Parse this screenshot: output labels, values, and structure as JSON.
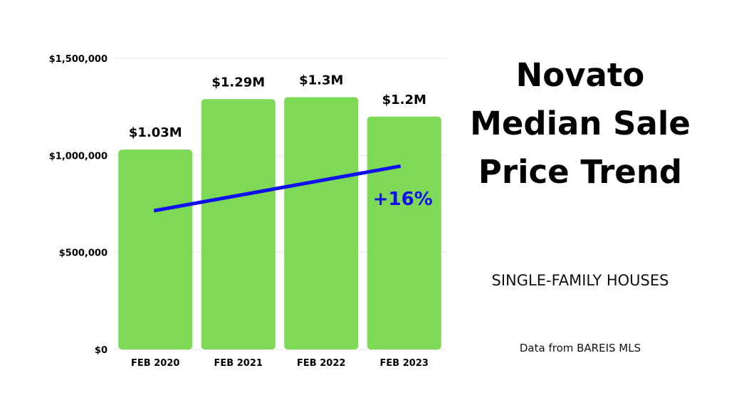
{
  "title_lines": [
    "Novato",
    "Median Sale",
    "Price Trend"
  ],
  "subtitle": "SINGLE-FAMILY HOUSES",
  "source": "Data from BAREIS MLS",
  "colors": {
    "bar": "#7ed957",
    "trend": "#1010ee",
    "annotation": "#1010ee",
    "grid": "#e6e6e6"
  },
  "chart_data": {
    "type": "bar",
    "categories": [
      "FEB 2020",
      "FEB 2021",
      "FEB 2022",
      "FEB 2023"
    ],
    "values": [
      1030000,
      1290000,
      1300000,
      1200000
    ],
    "data_labels": [
      "$1.03M",
      "$1.29M",
      "$1.3M",
      "$1.2M"
    ],
    "ylim": [
      0,
      1500000
    ],
    "yticks": [
      0,
      500000,
      1000000,
      1500000
    ],
    "ytick_labels": [
      "$0",
      "$500,000",
      "$1,000,000",
      "$1,500,000"
    ],
    "grid": true,
    "trendline": {
      "start": 715000,
      "end": 945000
    },
    "annotation": "+16%"
  }
}
